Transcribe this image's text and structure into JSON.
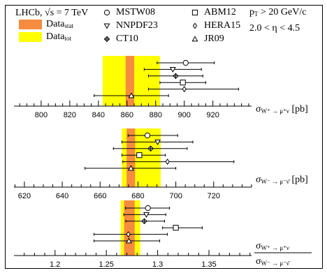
{
  "header": {
    "experiment": "LHCb, ",
    "sqrt": "√",
    "s_text": "s = 7 TeV",
    "pt": {
      "symbol": "p",
      "sub": "T",
      "rest": " > 20 GeV/c"
    },
    "eta": "2.0 < η < 4.5"
  },
  "legend": {
    "data_stat": {
      "label": "Data",
      "sub": "stat",
      "color": "#f58c40"
    },
    "data_tot": {
      "label": "Data",
      "sub": "tot",
      "color": "#ffff00"
    },
    "theories": [
      {
        "name": "MSTW08",
        "marker": "circle"
      },
      {
        "name": "NNPDF23",
        "marker": "triangle-down"
      },
      {
        "name": "CT10",
        "marker": "cross-diamond"
      },
      {
        "name": "ABM12",
        "marker": "square"
      },
      {
        "name": "HERA15",
        "marker": "diamond"
      },
      {
        "name": "JR09",
        "marker": "triangle-up"
      }
    ]
  },
  "chart_data": [
    {
      "type": "errorbar",
      "x_label": {
        "symbol": "σ",
        "sub": "W⁺ → μ⁺ν",
        "unit": " [pb]"
      },
      "xlim": [
        781,
        947
      ],
      "xticks": [
        800,
        820,
        840,
        860,
        880,
        900,
        920
      ],
      "minor_xticks": [
        785,
        790,
        795,
        805,
        810,
        815,
        825,
        830,
        835,
        845,
        850,
        855,
        865,
        870,
        875,
        885,
        890,
        895,
        905,
        910,
        915,
        925,
        930,
        935,
        940,
        945
      ],
      "stat_band": [
        859,
        865
      ],
      "tot_band": [
        843,
        883
      ],
      "values": [
        901,
        892,
        894,
        899,
        900,
        863
      ],
      "lows": [
        881,
        872,
        875,
        883,
        875,
        837
      ],
      "highs": [
        921,
        912,
        913,
        915,
        938,
        889
      ]
    },
    {
      "type": "errorbar",
      "x_label": {
        "symbol": "σ",
        "sub": "W⁻ → μ⁻ν̄",
        "unit": " [pb]"
      },
      "xlim": [
        614.5,
        740
      ],
      "xticks": [
        620,
        640,
        660,
        680,
        700,
        720
      ],
      "minor_xticks": [
        615,
        625,
        630,
        635,
        645,
        650,
        655,
        665,
        670,
        675,
        685,
        690,
        695,
        705,
        710,
        715,
        725,
        730,
        735,
        740
      ],
      "stat_band": [
        674,
        678.5
      ],
      "tot_band": [
        671.5,
        692
      ],
      "values": [
        685,
        690.4,
        686.7,
        680.7,
        695.6,
        676.3
      ],
      "lows": [
        674.8,
        671.5,
        667,
        671.5,
        672,
        652
      ],
      "highs": [
        701,
        709,
        706,
        694.5,
        730.7,
        700
      ]
    },
    {
      "type": "errorbar",
      "x_label": {
        "symbol": "σ",
        "sub": "W⁺ → μ⁺ν",
        "den_symbol": "σ",
        "den_sub": "W⁻ → μ⁻ν̄"
      },
      "xlim": [
        1.16,
        1.3915
      ],
      "xticks": [
        1.2,
        1.25,
        1.3,
        1.35
      ],
      "minor_xticks": [
        1.17,
        1.18,
        1.19,
        1.21,
        1.22,
        1.23,
        1.24,
        1.26,
        1.27,
        1.28,
        1.29,
        1.31,
        1.32,
        1.33,
        1.34,
        1.36,
        1.37,
        1.38,
        1.39
      ],
      "stat_band": [
        1.2673,
        1.2776
      ],
      "tot_band": [
        1.264,
        1.283
      ],
      "values": [
        1.2905,
        1.289,
        1.287,
        1.3177,
        1.2714,
        1.272
      ],
      "lows": [
        1.2687,
        1.267,
        1.269,
        1.3048,
        1.238,
        1.238
      ],
      "highs": [
        1.3116,
        1.308,
        1.3068,
        1.3435,
        1.3095,
        1.302
      ]
    }
  ]
}
